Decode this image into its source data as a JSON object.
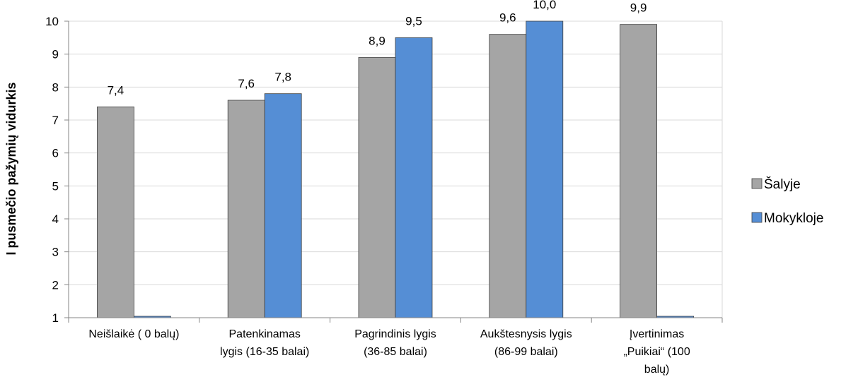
{
  "chart_data": {
    "type": "bar",
    "ylabel": "I pusmečio pažymių vidurkis",
    "ylim": [
      1,
      10
    ],
    "yticks": [
      1,
      2,
      3,
      4,
      5,
      6,
      7,
      8,
      9,
      10
    ],
    "categories": [
      [
        "Neišlaikė ( 0 balų)"
      ],
      [
        "Patenkinamas",
        "lygis (16-35 balai)"
      ],
      [
        "Pagrindinis lygis",
        "(36-85 balai)"
      ],
      [
        "Aukštesnysis lygis",
        "(86-99 balai)"
      ],
      [
        "Įvertinimas",
        "„Puikiai“ (100",
        "balų)"
      ]
    ],
    "series": [
      {
        "name": "Šalyje",
        "color": "#A5A5A5",
        "values": [
          7.4,
          7.6,
          8.9,
          9.6,
          9.9
        ],
        "labels": [
          "7,4",
          "7,6",
          "8,9",
          "9,6",
          "9,9"
        ]
      },
      {
        "name": "Mokykloje",
        "color": "#558ED5",
        "values": [
          1,
          7.8,
          9.5,
          10.0,
          1
        ],
        "labels": [
          "",
          "7,8",
          "9,5",
          "10,0",
          ""
        ]
      }
    ],
    "grid": true,
    "legend_position": "right"
  }
}
